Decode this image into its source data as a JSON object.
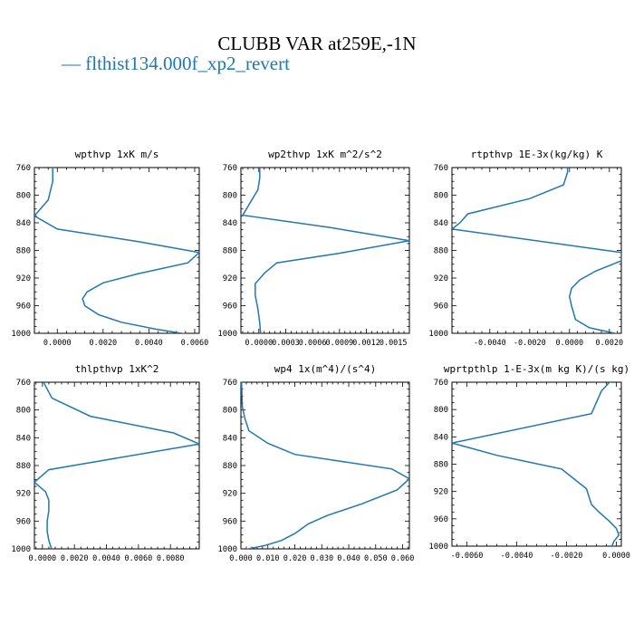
{
  "figure": {
    "title": "CLUBB VAR at259E,-1N",
    "legend_label": "— flthist134.000f_xp2_revert",
    "line_color": "#1f77b4"
  },
  "chart_data": [
    {
      "type": "line",
      "title": "wpthvp  1xK m/s",
      "xlim": [
        -0.001,
        0.0062
      ],
      "ylim": [
        760,
        1000
      ],
      "y_inverted": true,
      "xticks": [
        0.0,
        0.002,
        0.004,
        0.006
      ],
      "xtick_labels": [
        "0.0000",
        "0.0020",
        "0.0040",
        "0.0060"
      ],
      "yticks": [
        760,
        800,
        840,
        880,
        920,
        960,
        1000
      ],
      "x": [
        -0.0002,
        -0.0002,
        -0.0004,
        -0.001,
        0.0,
        0.0035,
        0.0062,
        0.0057,
        0.0035,
        0.002,
        0.0013,
        0.0011,
        0.0012,
        0.0018,
        0.0028,
        0.0043,
        0.0058
      ],
      "y": [
        757,
        780,
        807,
        830,
        849,
        867,
        883,
        898,
        914,
        927,
        940,
        950,
        960,
        973,
        984,
        994,
        1002
      ]
    },
    {
      "type": "line",
      "title": "wp2thvp  1xK m^2/s^2",
      "xlim": [
        -0.0002,
        0.00168
      ],
      "ylim": [
        760,
        1000
      ],
      "y_inverted": true,
      "xticks": [
        0.0,
        0.0003,
        0.0006,
        0.0009,
        0.0012,
        0.0015
      ],
      "xtick_labels": [
        "0.0000",
        "0.0003",
        "0.0006",
        "0.0009",
        "0.0012",
        "0.0015"
      ],
      "yticks": [
        760,
        800,
        840,
        880,
        920,
        960,
        1000
      ],
      "x": [
        1e-05,
        1e-05,
        -1e-05,
        -0.00018,
        0.0008,
        0.00168,
        0.0009,
        0.0002,
        7e-05,
        -4e-05,
        -4e-05,
        -1e-05,
        1e-05,
        2e-05
      ],
      "y": [
        757,
        775,
        792,
        829,
        847,
        866,
        884,
        898,
        912,
        928,
        945,
        965,
        985,
        1002
      ]
    },
    {
      "type": "line",
      "title": "rtpthvp  1E-3x(kg/kg) K",
      "xlim": [
        -0.0059,
        0.0026
      ],
      "ylim": [
        760,
        1000
      ],
      "y_inverted": true,
      "xticks": [
        -0.004,
        -0.002,
        0.0,
        0.002
      ],
      "xtick_labels": [
        "-0.0040",
        "-0.0020",
        "0.0000",
        "0.0020"
      ],
      "yticks": [
        760,
        800,
        840,
        880,
        920,
        960,
        1000
      ],
      "x": [
        -0.0001,
        -0.0001,
        -0.0003,
        -0.002,
        -0.0051,
        -0.0055,
        -0.0059,
        0.0026,
        0.0026,
        0.0013,
        0.0005,
        0.0001,
        0.0,
        0.0001,
        0.0003,
        0.001,
        0.0026
      ],
      "y": [
        757,
        767,
        785,
        805,
        827,
        840,
        849,
        883,
        895,
        910,
        923,
        935,
        947,
        960,
        980,
        992,
        1002
      ]
    },
    {
      "type": "line",
      "title": "thlpthvp  1xK^2",
      "xlim": [
        -0.0005,
        0.0098
      ],
      "ylim": [
        760,
        1000
      ],
      "y_inverted": true,
      "xticks": [
        0.0,
        0.002,
        0.004,
        0.006,
        0.008
      ],
      "xtick_labels": [
        "0.0000",
        "0.0020",
        "0.0040",
        "0.0060",
        "0.0080"
      ],
      "yticks": [
        760,
        800,
        840,
        880,
        920,
        960,
        1000
      ],
      "x": [
        0.0,
        0.0006,
        0.003,
        0.0082,
        0.0098,
        0.0004,
        -0.0005,
        0.0002,
        0.0004,
        0.0004,
        0.0003,
        0.0003,
        0.0004,
        0.0006
      ],
      "y": [
        757,
        783,
        809,
        833,
        849,
        886,
        904,
        918,
        930,
        945,
        960,
        975,
        988,
        1002
      ]
    },
    {
      "type": "line",
      "title": "wp4  1x(m^4)/(s^4)",
      "xlim": [
        0.0,
        0.0625
      ],
      "ylim": [
        760,
        1000
      ],
      "y_inverted": true,
      "xticks": [
        0.0,
        0.01,
        0.02,
        0.03,
        0.04,
        0.05,
        0.06
      ],
      "xtick_labels": [
        "0.000",
        "0.010",
        "0.020",
        "0.030",
        "0.040",
        "0.050",
        "0.060"
      ],
      "yticks": [
        760,
        800,
        840,
        880,
        920,
        960,
        1000
      ],
      "x": [
        0.0002,
        0.0005,
        0.0015,
        0.003,
        0.01,
        0.02,
        0.056,
        0.0625,
        0.058,
        0.045,
        0.032,
        0.025,
        0.02,
        0.015,
        0.009,
        0.004,
        0.0005
      ],
      "y": [
        757,
        795,
        813,
        830,
        848,
        864,
        885,
        899,
        915,
        935,
        952,
        964,
        978,
        988,
        995,
        999,
        1002
      ]
    },
    {
      "type": "line",
      "title": "wprtpthlp  1-E-3x(m kg K)/(s kg)",
      "xlim": [
        -0.0066,
        0.0002
      ],
      "ylim": [
        760,
        1000
      ],
      "y_inverted": true,
      "xticks": [
        -0.006,
        -0.004,
        -0.002,
        0.0
      ],
      "xtick_labels": [
        "-0.0060",
        "-0.0040",
        "-0.0020",
        "0.0000"
      ],
      "yticks": [
        760,
        800,
        840,
        880,
        920,
        960,
        1000
      ],
      "x": [
        -0.0002,
        -0.0006,
        -0.001,
        -0.0066,
        -0.0048,
        -0.0022,
        -0.0012,
        -0.001,
        -0.0007,
        -0.0003,
        0.0,
        0.0001,
        -0.0001,
        -0.0002
      ],
      "y": [
        757,
        773,
        806,
        849,
        867,
        887,
        916,
        939,
        950,
        963,
        974,
        984,
        993,
        1002
      ]
    }
  ]
}
